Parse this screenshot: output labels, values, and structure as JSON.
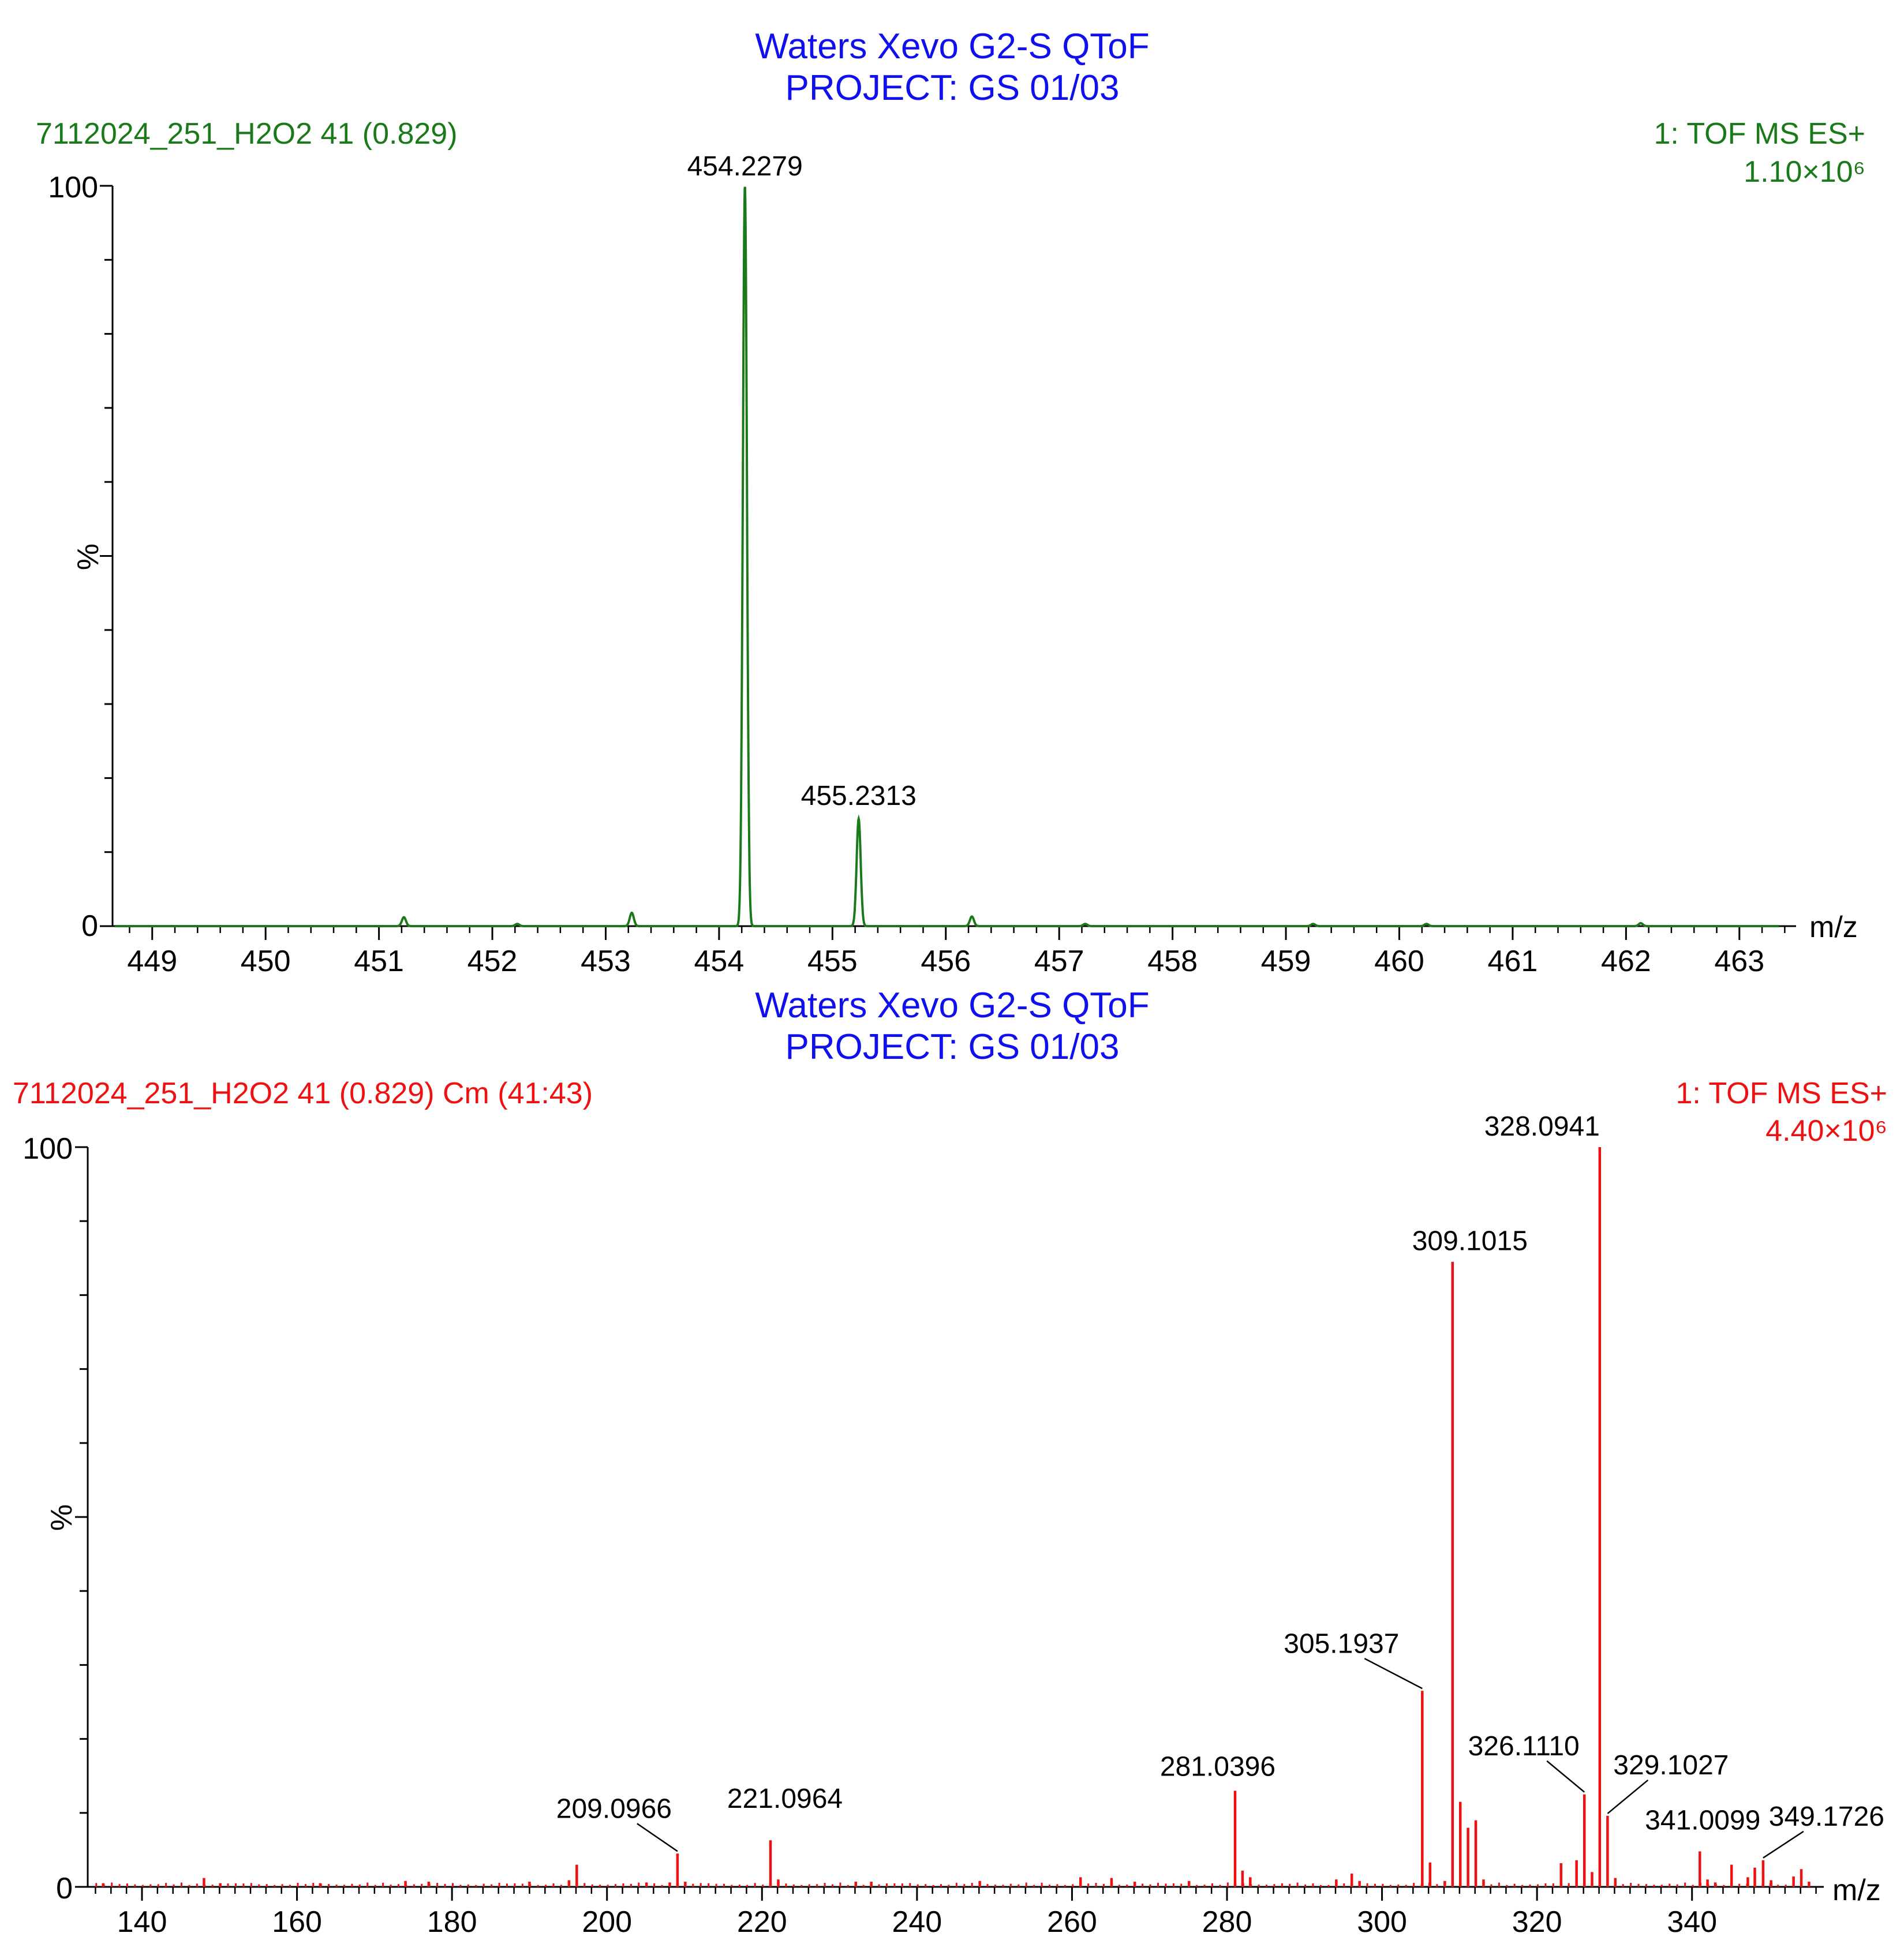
{
  "colors": {
    "title": "#1010ee",
    "top_trace": "#1a7a1a",
    "bottom_trace": "#ee1111",
    "axis": "#000000"
  },
  "chart_data": [
    {
      "type": "line",
      "title": "Waters Xevo G2-S QToF",
      "subtitle": "PROJECT: GS 01/03",
      "sample_label": "7112024_251_H2O2 41 (0.829)",
      "mode_label": "1: TOF MS ES+",
      "intensity_label": "1.10×10⁶",
      "xlabel": "m/z",
      "ylabel": "%",
      "xlim": [
        448.65,
        463.5
      ],
      "ylim": [
        0,
        100
      ],
      "xticks": [
        449,
        450,
        451,
        452,
        453,
        454,
        455,
        456,
        457,
        458,
        459,
        460,
        461,
        462,
        463
      ],
      "yticks": [
        0,
        100
      ],
      "peaks": [
        {
          "mz": 451.22,
          "intensity": 1.2
        },
        {
          "mz": 452.22,
          "intensity": 0.3
        },
        {
          "mz": 453.23,
          "intensity": 1.8
        },
        {
          "mz": 454.2279,
          "intensity": 100
        },
        {
          "mz": 455.2313,
          "intensity": 14.5
        },
        {
          "mz": 456.23,
          "intensity": 1.3
        },
        {
          "mz": 457.23,
          "intensity": 0.3
        },
        {
          "mz": 459.24,
          "intensity": 0.3
        },
        {
          "mz": 460.24,
          "intensity": 0.3
        },
        {
          "mz": 462.13,
          "intensity": 0.4
        }
      ],
      "peak_labels": [
        {
          "text": "454.2279",
          "mz": 454.2279,
          "intensity": 100
        },
        {
          "text": "455.2313",
          "mz": 455.2313,
          "intensity": 14.5
        }
      ]
    },
    {
      "type": "bar",
      "title": "Waters Xevo G2-S QToF",
      "subtitle": "PROJECT: GS 01/03",
      "sample_label": "7112024_251_H2O2 41 (0.829) Cm (41:43)",
      "mode_label": "1: TOF MS ES+",
      "intensity_label": "4.40×10⁶",
      "xlabel": "m/z",
      "ylabel": "%",
      "xlim": [
        133,
        357
      ],
      "ylim": [
        0,
        100
      ],
      "xticks": [
        140,
        160,
        180,
        200,
        220,
        240,
        260,
        280,
        300,
        320,
        340
      ],
      "yticks": [
        0,
        100
      ],
      "peaks": [
        {
          "mz": 135.0,
          "intensity": 0.5
        },
        {
          "mz": 148.0,
          "intensity": 1.2
        },
        {
          "mz": 150.1,
          "intensity": 0.5
        },
        {
          "mz": 163.0,
          "intensity": 0.5
        },
        {
          "mz": 174.0,
          "intensity": 0.8
        },
        {
          "mz": 177.0,
          "intensity": 0.7
        },
        {
          "mz": 190.0,
          "intensity": 0.7
        },
        {
          "mz": 195.1,
          "intensity": 0.9
        },
        {
          "mz": 196.1,
          "intensity": 3.0
        },
        {
          "mz": 205.1,
          "intensity": 0.6
        },
        {
          "mz": 208.1,
          "intensity": 0.6
        },
        {
          "mz": 209.0966,
          "intensity": 4.5
        },
        {
          "mz": 210.1,
          "intensity": 0.7
        },
        {
          "mz": 221.0964,
          "intensity": 6.3
        },
        {
          "mz": 222.1,
          "intensity": 1.0
        },
        {
          "mz": 232.1,
          "intensity": 0.7
        },
        {
          "mz": 234.1,
          "intensity": 0.7
        },
        {
          "mz": 248.1,
          "intensity": 0.8
        },
        {
          "mz": 261.1,
          "intensity": 1.3
        },
        {
          "mz": 265.1,
          "intensity": 1.2
        },
        {
          "mz": 268.1,
          "intensity": 0.7
        },
        {
          "mz": 275.1,
          "intensity": 0.8
        },
        {
          "mz": 281.0396,
          "intensity": 13.0
        },
        {
          "mz": 282.0,
          "intensity": 2.2
        },
        {
          "mz": 283.0,
          "intensity": 1.3
        },
        {
          "mz": 294.1,
          "intensity": 1.0
        },
        {
          "mz": 296.1,
          "intensity": 1.8
        },
        {
          "mz": 297.1,
          "intensity": 0.8
        },
        {
          "mz": 305.1937,
          "intensity": 26.5
        },
        {
          "mz": 306.2,
          "intensity": 3.3
        },
        {
          "mz": 308.1,
          "intensity": 0.8
        },
        {
          "mz": 309.1015,
          "intensity": 84.5
        },
        {
          "mz": 310.1,
          "intensity": 11.5
        },
        {
          "mz": 311.1,
          "intensity": 8.0
        },
        {
          "mz": 312.1,
          "intensity": 9.0
        },
        {
          "mz": 313.1,
          "intensity": 1.0
        },
        {
          "mz": 323.1,
          "intensity": 3.2
        },
        {
          "mz": 325.1,
          "intensity": 3.6
        },
        {
          "mz": 326.111,
          "intensity": 12.5
        },
        {
          "mz": 327.1,
          "intensity": 2.0
        },
        {
          "mz": 328.0941,
          "intensity": 100
        },
        {
          "mz": 329.1027,
          "intensity": 9.6
        },
        {
          "mz": 330.1,
          "intensity": 1.2
        },
        {
          "mz": 341.0099,
          "intensity": 4.8
        },
        {
          "mz": 342.0,
          "intensity": 1.0
        },
        {
          "mz": 343.0,
          "intensity": 0.6
        },
        {
          "mz": 345.1,
          "intensity": 3.0
        },
        {
          "mz": 347.2,
          "intensity": 1.3
        },
        {
          "mz": 348.1,
          "intensity": 2.6
        },
        {
          "mz": 349.1726,
          "intensity": 3.6
        },
        {
          "mz": 350.2,
          "intensity": 0.9
        },
        {
          "mz": 353.1,
          "intensity": 1.4
        },
        {
          "mz": 354.1,
          "intensity": 2.4
        },
        {
          "mz": 355.1,
          "intensity": 0.7
        }
      ],
      "peak_labels": [
        {
          "text": "209.0966",
          "mz": 209.0966,
          "intensity": 4.5
        },
        {
          "text": "221.0964",
          "mz": 221.0964,
          "intensity": 6.3
        },
        {
          "text": "281.0396",
          "mz": 281.0396,
          "intensity": 13.0
        },
        {
          "text": "305.1937",
          "mz": 305.1937,
          "intensity": 26.5
        },
        {
          "text": "309.1015",
          "mz": 309.1015,
          "intensity": 84.5
        },
        {
          "text": "326.1110",
          "mz": 326.111,
          "intensity": 12.5
        },
        {
          "text": "328.0941",
          "mz": 328.0941,
          "intensity": 100
        },
        {
          "text": "329.1027",
          "mz": 329.1027,
          "intensity": 9.6
        },
        {
          "text": "341.0099",
          "mz": 341.0099,
          "intensity": 4.8
        },
        {
          "text": "349.1726",
          "mz": 349.1726,
          "intensity": 3.6
        }
      ]
    }
  ]
}
